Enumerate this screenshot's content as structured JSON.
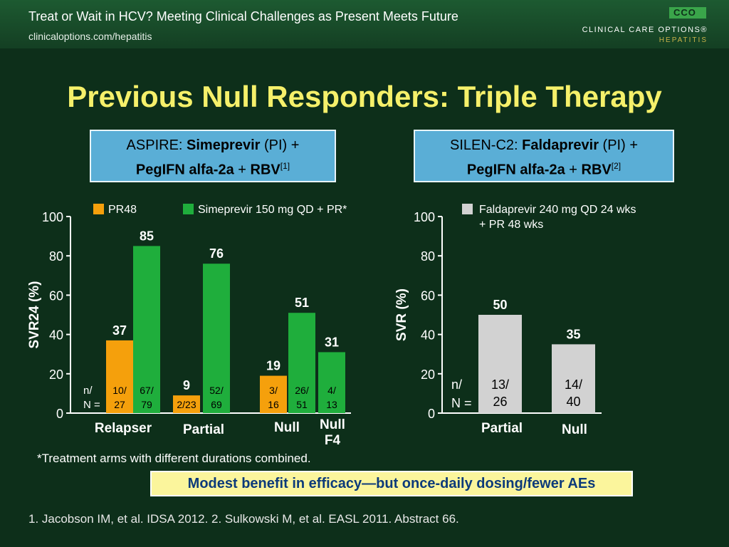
{
  "header": {
    "title": "Treat or Wait in HCV? Meeting Clinical Challenges as Present Meets Future",
    "url": "clinicaloptions.com/hepatitis",
    "logo_text": "CCO",
    "brand": "CLINICAL CARE OPTIONS®",
    "brand_sub": "HEPATITIS"
  },
  "title": "Previous Null Responders: Triple Therapy",
  "aspire": {
    "prefix": "ASPIRE: ",
    "drug": "Simeprevir",
    "mid": " (PI) +",
    "line2a": "PegIFN alfa-2a",
    "line2b": " + ",
    "line2c": "RBV",
    "ref": "[1]"
  },
  "silen": {
    "prefix": "SILEN-C2: ",
    "drug": "Faldaprevir",
    "mid": " (PI) +",
    "line2a": "PegIFN alfa-2a",
    "line2b": " + ",
    "line2c": "RBV",
    "ref": "[2]"
  },
  "colors": {
    "pr48": "#f5a00c",
    "simeprevir": "#1fae3c",
    "faldaprevir": "#d2d2d2",
    "axis": "#ffffff"
  },
  "chart_data": [
    {
      "type": "bar",
      "ylabel": "SVR24 (%)",
      "ylim": [
        0,
        100
      ],
      "yticks": [
        0,
        20,
        40,
        60,
        80,
        100
      ],
      "legend": [
        "PR48",
        "Simeprevir 150 mg QD + PR*"
      ],
      "n_label": "n/\nN =",
      "categories": [
        "Relapser",
        "Partial",
        "Null",
        "Null F4"
      ],
      "series": [
        {
          "name": "PR48",
          "values": [
            37,
            9,
            19,
            null
          ],
          "n": [
            "10/27",
            "2/23",
            "3/16",
            ""
          ]
        },
        {
          "name": "Simeprevir 150 mg QD + PR*",
          "values": [
            85,
            76,
            51,
            31
          ],
          "n": [
            "67/79",
            "52/69",
            "26/51",
            "4/13"
          ]
        }
      ]
    },
    {
      "type": "bar",
      "ylabel": "SVR (%)",
      "ylim": [
        0,
        100
      ],
      "yticks": [
        0,
        20,
        40,
        60,
        80,
        100
      ],
      "legend": [
        "Faldaprevir 240 mg QD 24 wks + PR 48 wks"
      ],
      "n_label": "n/\nN =",
      "categories": [
        "Partial",
        "Null"
      ],
      "series": [
        {
          "name": "Faldaprevir 240 mg QD 24 wks + PR 48 wks",
          "values": [
            50,
            35
          ],
          "n": [
            "13/26",
            "14/40"
          ]
        }
      ]
    }
  ],
  "footnote": "*Treatment arms with different durations combined.",
  "callout": "Modest benefit in efficacy—but once-daily dosing/fewer AEs",
  "references": "1. Jacobson IM, et al. IDSA 2012. 2. Sulkowski M, et al. EASL 2011. Abstract 66."
}
